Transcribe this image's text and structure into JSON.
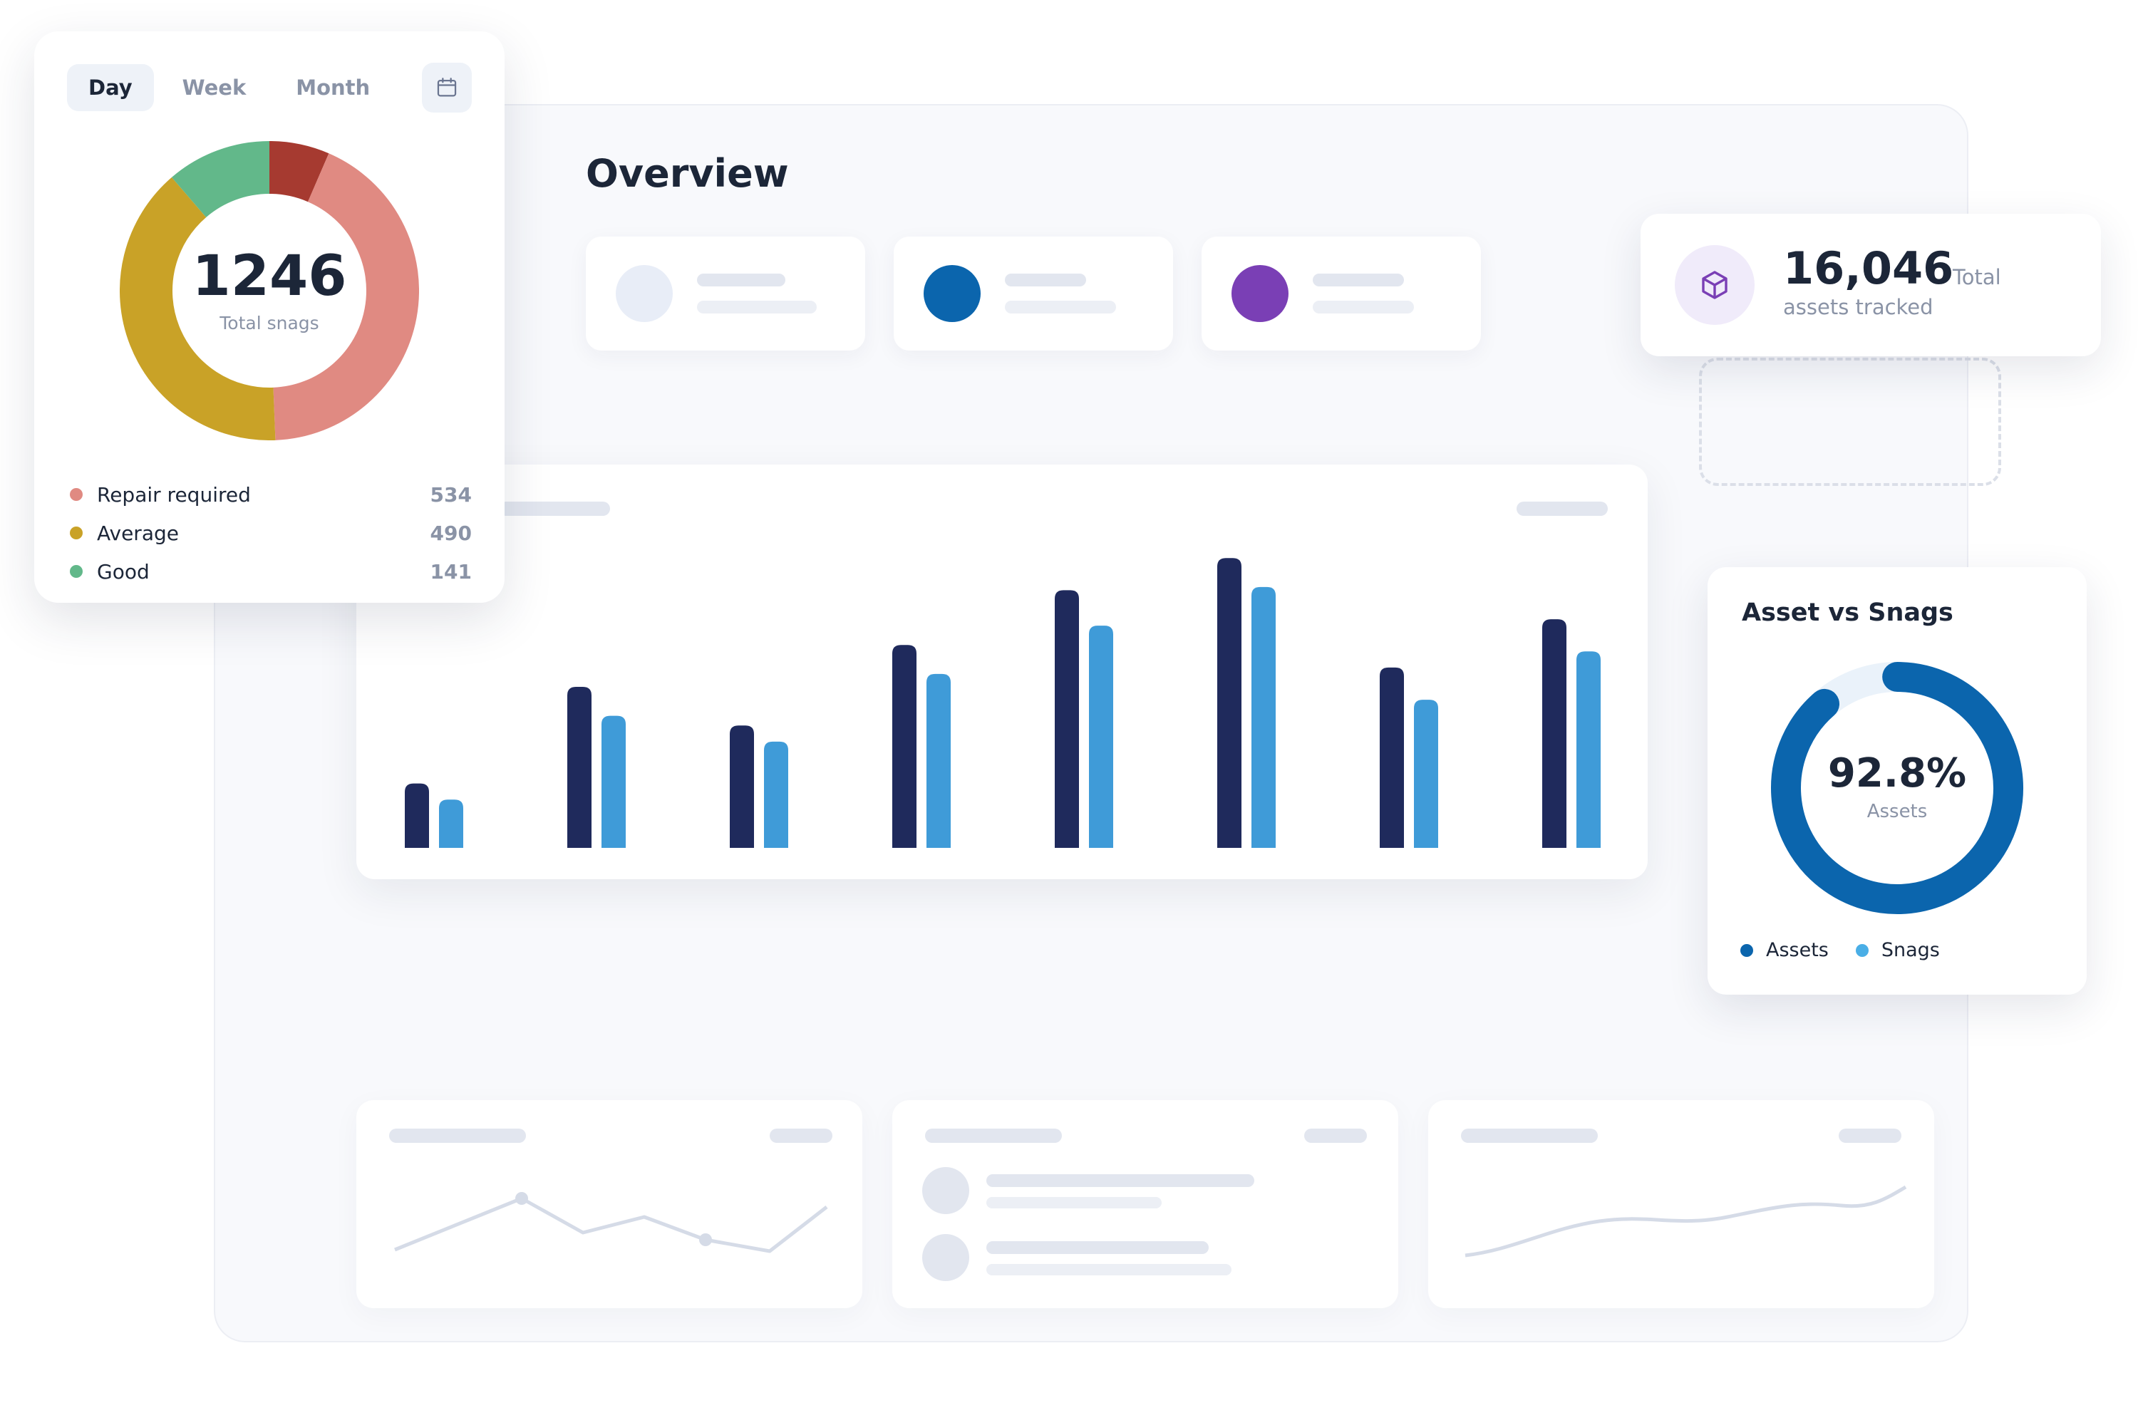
{
  "overview": {
    "title": "Overview"
  },
  "stat_cards": [
    {
      "dot_color": "#e8edf7"
    },
    {
      "dot_color": "#0b65ad"
    },
    {
      "dot_color": "#7a3fb5"
    }
  ],
  "snags_card": {
    "tabs": [
      {
        "label": "Day",
        "active": true
      },
      {
        "label": "Week",
        "active": false
      },
      {
        "label": "Month",
        "active": false
      }
    ],
    "calendar_icon": "calendar-icon",
    "total": "1246",
    "total_caption": "Total snags",
    "legend": [
      {
        "label": "Repair required",
        "value": "534",
        "color": "#e08a82"
      },
      {
        "label": "Average",
        "value": "490",
        "color": "#c9a227"
      },
      {
        "label": "Good",
        "value": "141",
        "color": "#62b88a"
      }
    ],
    "unlabeled_segment_color": "#a63a30"
  },
  "assets_card": {
    "icon": "cube-icon",
    "number": "16,046",
    "total_label": "Total",
    "sub_label": "assets tracked"
  },
  "asset_vs_snags": {
    "title": "Asset vs Snags",
    "percent": "92.8%",
    "percent_value": 92.8,
    "caption": "Assets",
    "legend": [
      {
        "label": "Assets",
        "color": "#0b65ad"
      },
      {
        "label": "Snags",
        "color": "#4aaee6"
      }
    ]
  },
  "chart_data": {
    "type": "bar",
    "categories": [
      "",
      "",
      "",
      "",
      "",
      "",
      "",
      ""
    ],
    "series": [
      {
        "values": [
          20,
          50,
          38,
          63,
          80,
          90,
          56,
          71
        ],
        "color": "#1f2a5c"
      },
      {
        "values": [
          15,
          41,
          33,
          54,
          69,
          81,
          46,
          61
        ],
        "color": "#3f9bd8"
      }
    ],
    "ylim": [
      0,
      100
    ],
    "grid": false,
    "legend": "none"
  }
}
